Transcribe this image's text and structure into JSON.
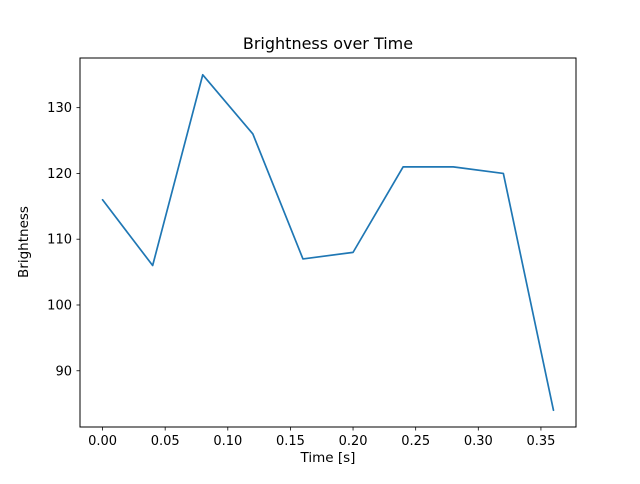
{
  "chart_data": {
    "type": "line",
    "title": "Brightness over Time",
    "xlabel": "Time [s]",
    "ylabel": "Brightness",
    "x": [
      0.0,
      0.04,
      0.08,
      0.12,
      0.16,
      0.2,
      0.24,
      0.28,
      0.32,
      0.36
    ],
    "y": [
      116,
      106,
      135,
      126,
      107,
      108,
      121,
      121,
      120,
      84
    ],
    "xlim": [
      -0.018,
      0.378
    ],
    "ylim": [
      81.45,
      137.55
    ],
    "xticks": [
      0.0,
      0.05,
      0.1,
      0.15,
      0.2,
      0.25,
      0.3,
      0.35
    ],
    "xtick_labels": [
      "0.00",
      "0.05",
      "0.10",
      "0.15",
      "0.20",
      "0.25",
      "0.30",
      "0.35"
    ],
    "yticks": [
      90,
      100,
      110,
      120,
      130
    ],
    "ytick_labels": [
      "90",
      "100",
      "110",
      "120",
      "130"
    ],
    "line_color": "#1f77b4",
    "axis_color": "#000000",
    "background_color": "#ffffff",
    "grid": false,
    "legend_position": "none"
  }
}
